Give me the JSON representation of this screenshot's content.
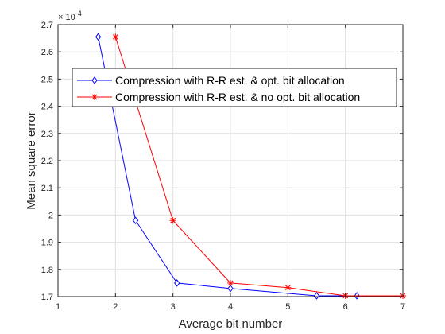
{
  "chart_data": {
    "type": "line",
    "xlabel": "Average bit number",
    "ylabel": "Mean square error",
    "y_multiplier": "× 10",
    "y_exponent": "-4",
    "xlim": [
      1,
      7
    ],
    "ylim": [
      1.7,
      2.7
    ],
    "x_ticks": [
      1,
      2,
      3,
      4,
      5,
      6,
      7
    ],
    "y_ticks": [
      1.7,
      1.8,
      1.9,
      2.0,
      2.1,
      2.2,
      2.3,
      2.4,
      2.5,
      2.6,
      2.7
    ],
    "x_tick_labels": [
      "1",
      "2",
      "3",
      "4",
      "5",
      "6",
      "7"
    ],
    "y_tick_labels": [
      "1.7",
      "1.8",
      "1.9",
      "2",
      "2.1",
      "2.2",
      "2.3",
      "2.4",
      "2.5",
      "2.6",
      "2.7"
    ],
    "grid": true,
    "legend_position": "upper-center",
    "series": [
      {
        "name": "Compression with R-R est. & opt. bit allocation",
        "color": "#0000ff",
        "marker": "diamond",
        "x": [
          1.7,
          2.35,
          3.07,
          4.0,
          5.5,
          6.2
        ],
        "y": [
          2.655,
          1.98,
          1.75,
          1.73,
          1.703,
          1.703
        ]
      },
      {
        "name": "Compression with R-R est. & no opt. bit allocation",
        "color": "#ff0000",
        "marker": "asterisk",
        "x": [
          2.0,
          3.0,
          4.0,
          5.0,
          6.0,
          7.0
        ],
        "y": [
          2.655,
          1.98,
          1.75,
          1.733,
          1.703,
          1.703
        ]
      }
    ]
  }
}
